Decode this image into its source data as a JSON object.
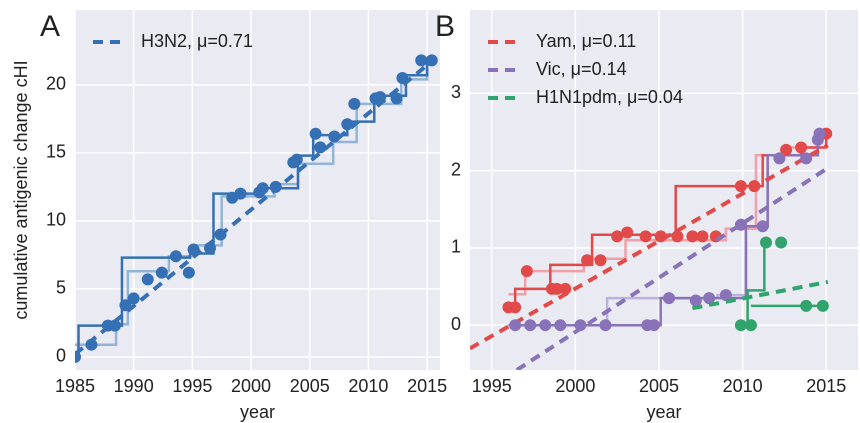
{
  "chart_data": [
    {
      "type": "line",
      "panel_label": "A",
      "xlabel": "year",
      "ylabel": "cumulative antigenic change cHI",
      "xlim": [
        1985,
        2016.1
      ],
      "ylim": [
        -0.96,
        25.5
      ],
      "xticks": [
        1985,
        1990,
        1995,
        2000,
        2005,
        2010,
        2015
      ],
      "yticks": [
        0,
        5,
        10,
        15,
        20
      ],
      "grid": true,
      "legend": "upper left",
      "series": [
        {
          "name": "H3N2, μ=0.71",
          "color": "#3570b4",
          "fit": {
            "x": [
              1985,
              2015.5
            ],
            "values": [
              0.2,
              21.8
            ]
          },
          "points": {
            "x": [
              1985,
              1986.4,
              1987.8,
              1988.4,
              1989.3,
              1990.0,
              1991.2,
              1992.4,
              1993.6,
              1994.7,
              1995.1,
              1996.5,
              1997.4,
              1998.4,
              1999.1,
              2000.7,
              2001.0,
              2002.1,
              2003.6,
              2003.9,
              2005.5,
              2005.9,
              2007.1,
              2008.2,
              2008.8,
              2010.6,
              2011.0,
              2012.4,
              2012.9,
              2014.5,
              2015.4
            ],
            "values": [
              0,
              0.9,
              2.3,
              2.3,
              3.8,
              4.3,
              5.7,
              6.2,
              7.4,
              6.2,
              7.9,
              8.0,
              9.0,
              11.7,
              12.0,
              12.1,
              12.4,
              12.5,
              14.3,
              14.5,
              16.4,
              15.4,
              16.2,
              17.1,
              18.6,
              19.0,
              19.1,
              19.0,
              20.5,
              21.8,
              21.8
            ]
          },
          "steps": [
            {
              "color": "#92b4d9",
              "x": [
                1985,
                1988.5,
                1989.5,
                1993,
                1995,
                1997.5,
                2002,
                2004,
                2007,
                2009,
                2012.8,
                2015
              ],
              "values": [
                0.9,
                2.4,
                6.3,
                7.4,
                8.2,
                11.8,
                12.7,
                14.2,
                15.8,
                18.6,
                20.4,
                21.8
              ]
            },
            {
              "color": "#3570b4",
              "x": [
                1985,
                1985.3,
                1989,
                1994.8,
                1996.8,
                2001,
                2004,
                2005.3,
                2008.2,
                2010.5,
                2013.2,
                2015
              ],
              "values": [
                0,
                2.3,
                7.3,
                7.6,
                12.0,
                12.4,
                14.8,
                16.3,
                17.3,
                19.2,
                20.7,
                21.8
              ]
            }
          ]
        }
      ]
    },
    {
      "type": "line",
      "panel_label": "B",
      "xlabel": "year",
      "xlim": [
        1993.7,
        2016.9
      ],
      "ylim": [
        -0.58,
        4.08
      ],
      "xticks": [
        1995,
        2000,
        2005,
        2010,
        2015
      ],
      "yticks": [
        0,
        1,
        2,
        3
      ],
      "grid": true,
      "legend": "upper left",
      "series": [
        {
          "name": "Yam, μ=0.11",
          "color": "#e24a4a",
          "fit": {
            "x": [
              1993.7,
              2015.1
            ],
            "values": [
              -0.3,
              2.33
            ]
          },
          "points": {
            "x": [
              1996.0,
              1996.4,
              1997.1,
              1998.6,
              1998.9,
              1999.4,
              2000.7,
              2001.5,
              2002.5,
              2003.1,
              2004.2,
              2005.1,
              2006.1,
              2007.0,
              2007.6,
              2008.4,
              2009.9,
              2010.7,
              2012.6,
              2013.5,
              2015.0
            ],
            "values": [
              0.23,
              0.23,
              0.7,
              0.47,
              0.47,
              0.47,
              0.84,
              0.84,
              1.15,
              1.2,
              1.15,
              1.15,
              1.15,
              1.15,
              1.15,
              1.15,
              1.8,
              1.8,
              2.27,
              2.3,
              2.48
            ]
          },
          "steps": [
            {
              "color": "#f0a0a8",
              "x": [
                1996,
                1997,
                2000.5,
                2003,
                2009,
                2010.8,
                2012.6,
                2014.5
              ],
              "values": [
                0.4,
                0.7,
                0.86,
                1.1,
                1.25,
                2.2,
                2.3,
                2.5
              ]
            },
            {
              "color": "#e24a4a",
              "x": [
                1995.8,
                1996.4,
                1998.5,
                2001.0,
                2006.0,
                2009.8,
                2011.2,
                2013.5,
                2015
              ],
              "values": [
                0.23,
                0.47,
                0.78,
                1.17,
                1.8,
                1.8,
                2.2,
                2.3,
                2.5
              ]
            }
          ]
        },
        {
          "name": "Vic, μ=0.14",
          "color": "#8872b8",
          "fit": {
            "x": [
              1996.5,
              2015.2
            ],
            "values": [
              -0.58,
              2.05
            ]
          },
          "points": {
            "x": [
              1996.4,
              1997.3,
              1998.2,
              1999.1,
              2000.3,
              2001.8,
              2004.3,
              2004.7,
              2005.6,
              2007.2,
              2008.0,
              2009.0,
              2009.9,
              2011.2,
              2012.2,
              2013.8,
              2014.5,
              2014.6
            ],
            "values": [
              0,
              0,
              0,
              0,
              0,
              0,
              0,
              0,
              0.35,
              0.32,
              0.35,
              0.39,
              1.3,
              1.28,
              2.16,
              2.16,
              2.4,
              2.48
            ]
          },
          "steps": [
            {
              "color": "#bdb0dc",
              "x": [
                1996,
                2001.9,
                2008.5,
                2010.2,
                2011.5
              ],
              "values": [
                0,
                0.35,
                0.39,
                1.28,
                2.2
              ]
            },
            {
              "color": "#8872b8",
              "x": [
                1996,
                2004.7,
                2005.1,
                2010.2,
                2010.6,
                2011.5,
                2014.5
              ],
              "values": [
                0,
                0,
                0.35,
                1.28,
                1.28,
                2.2,
                2.5
              ]
            }
          ]
        },
        {
          "name": "H1N1pdm, μ=0.04",
          "color": "#30a46c",
          "fit": {
            "x": [
              2007.0,
              2015.1
            ],
            "values": [
              0.22,
              0.56
            ]
          },
          "points": {
            "x": [
              2009.9,
              2010.5,
              2011.4,
              2012.3,
              2013.8,
              2014.8
            ],
            "values": [
              0,
              0,
              1.07,
              1.07,
              0.25,
              0.25
            ]
          },
          "steps": [
            {
              "color": "#30a46c",
              "x": [
                2009.9,
                2010.3,
                2011.3
              ],
              "values": [
                0,
                0.45,
                1.1
              ]
            },
            {
              "color": "#30a46c",
              "x": [
                2010.5,
                2015
              ],
              "values": [
                0.25,
                0.25
              ]
            }
          ]
        }
      ]
    }
  ]
}
